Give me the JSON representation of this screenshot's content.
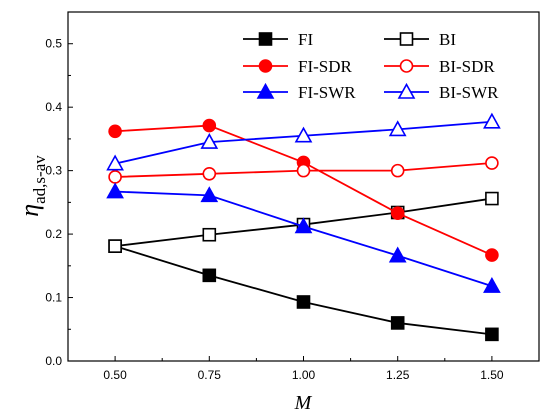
{
  "chart_data": {
    "type": "line",
    "xlabel": "M",
    "ylabel_symbol": "η",
    "ylabel_subscript": "ad,s-av",
    "x": [
      0.5,
      0.75,
      1.0,
      1.25,
      1.5
    ],
    "xticks": [
      "0.50",
      "0.75",
      "1.00",
      "1.25",
      "1.50"
    ],
    "yticks": [
      "0.0",
      "0.1",
      "0.2",
      "0.3",
      "0.4",
      "0.5"
    ],
    "xlim": [
      0.375,
      1.625
    ],
    "ylim": [
      0.0,
      0.55
    ],
    "grid": false,
    "legend_position": "top-right",
    "series": [
      {
        "name": "FI",
        "color": "#000000",
        "marker": "square",
        "filled": true,
        "values": [
          0.181,
          0.135,
          0.093,
          0.06,
          0.042
        ]
      },
      {
        "name": "BI",
        "color": "#000000",
        "marker": "square",
        "filled": false,
        "values": [
          0.181,
          0.199,
          0.215,
          0.234,
          0.256
        ]
      },
      {
        "name": "FI-SDR",
        "color": "#ff0000",
        "marker": "circle",
        "filled": true,
        "values": [
          0.362,
          0.371,
          0.313,
          0.233,
          0.167
        ]
      },
      {
        "name": "BI-SDR",
        "color": "#ff0000",
        "marker": "circle",
        "filled": false,
        "values": [
          0.29,
          0.295,
          0.3,
          0.3,
          0.312
        ]
      },
      {
        "name": "FI-SWR",
        "color": "#0000ff",
        "marker": "triangle",
        "filled": true,
        "values": [
          0.267,
          0.261,
          0.212,
          0.166,
          0.118
        ]
      },
      {
        "name": "BI-SWR",
        "color": "#0000ff",
        "marker": "triangle",
        "filled": false,
        "values": [
          0.311,
          0.345,
          0.355,
          0.365,
          0.377
        ]
      }
    ]
  }
}
